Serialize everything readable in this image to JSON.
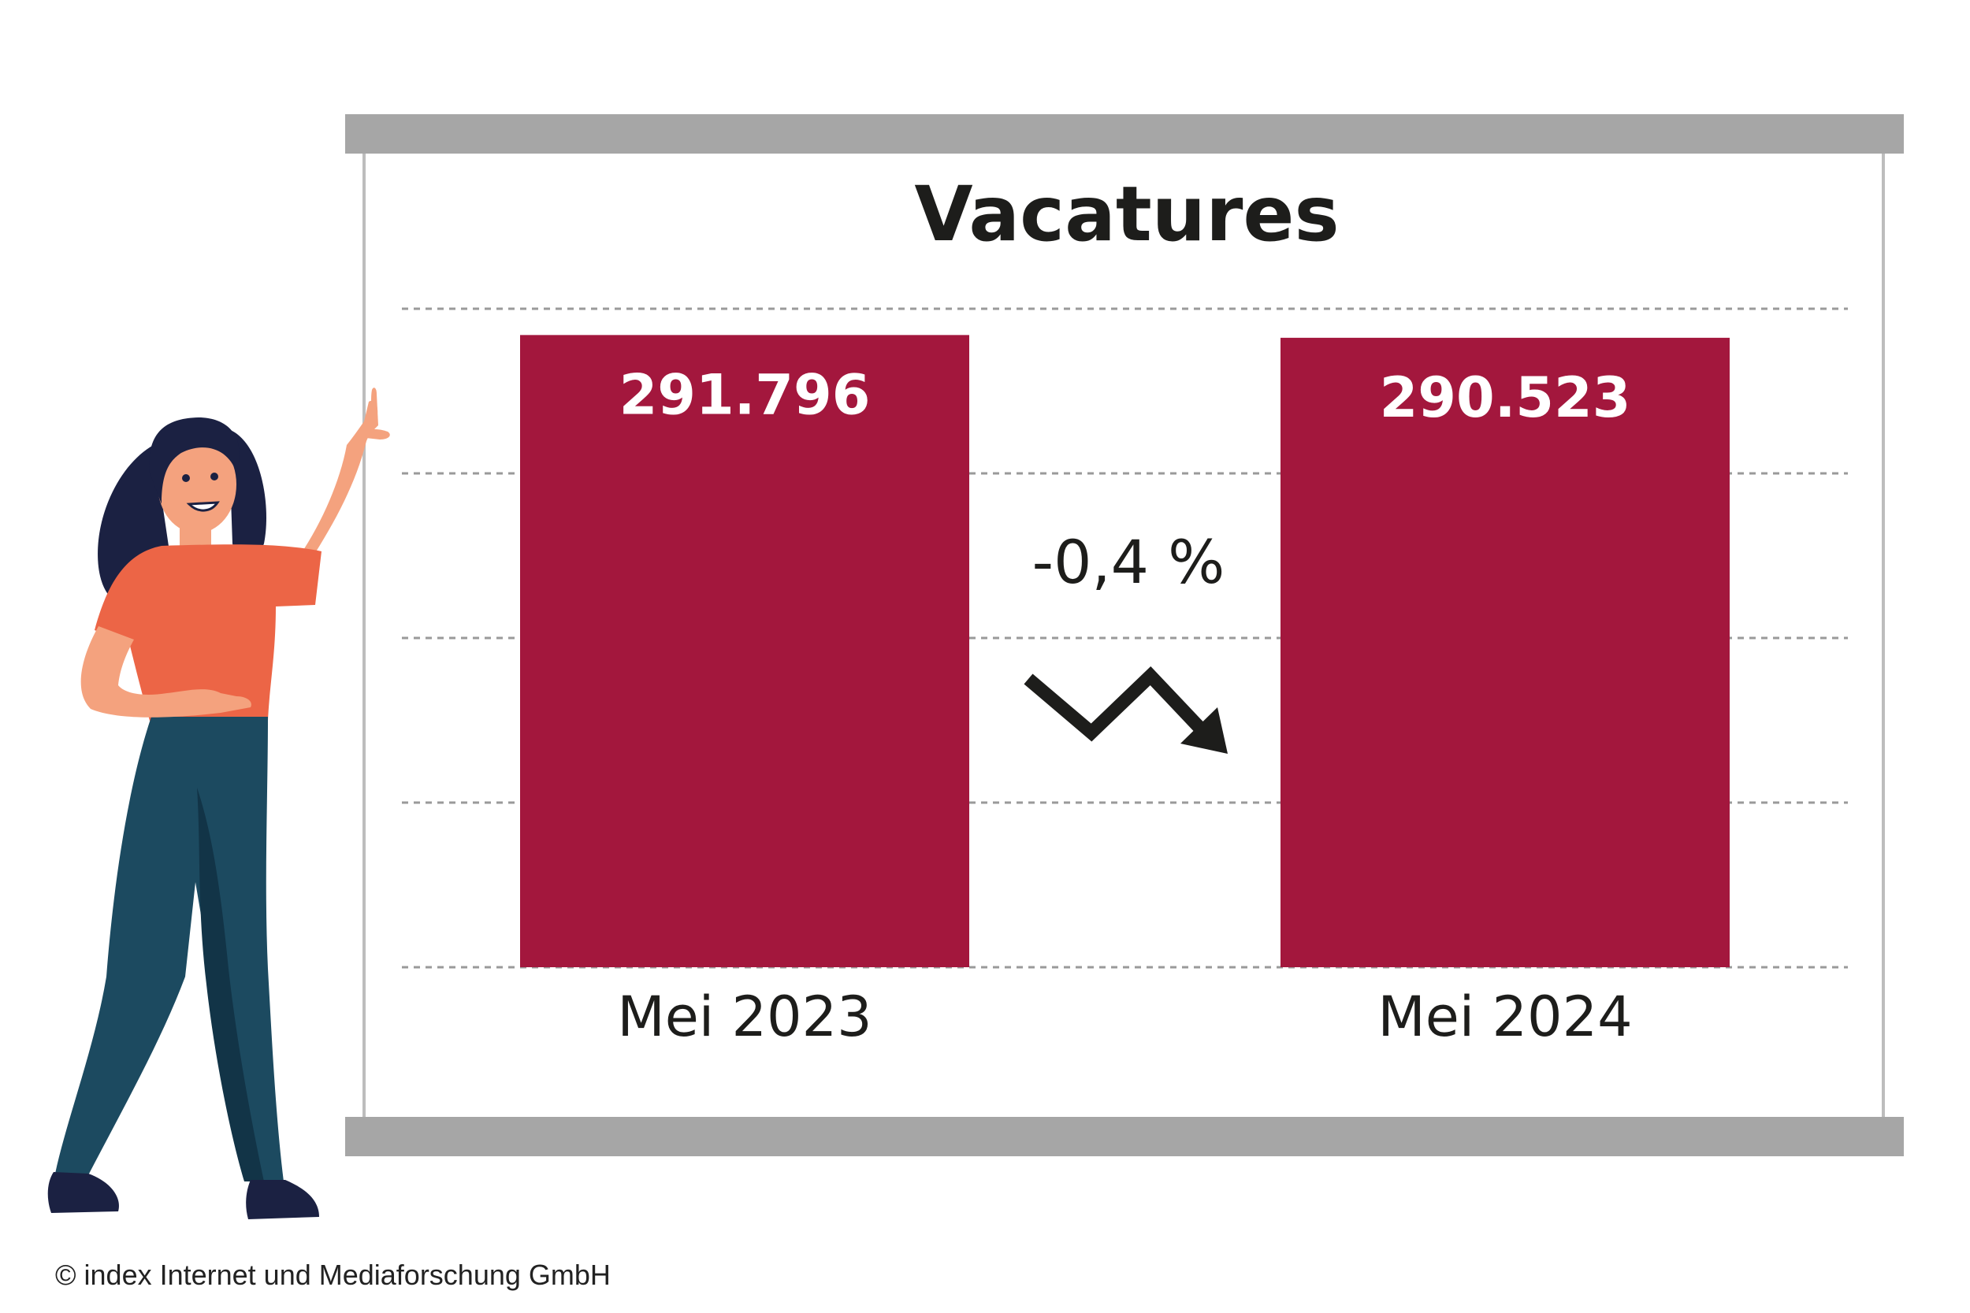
{
  "chart_data": {
    "type": "bar",
    "title": "Vacatures",
    "categories": [
      "Mei 2023",
      "Mei 2024"
    ],
    "values": [
      291796,
      290523
    ],
    "value_labels": [
      "291.796",
      "290.523"
    ],
    "change_label": "-0,4 %",
    "change_direction": "down",
    "ylim": [
      0,
      310000
    ],
    "grid": true,
    "grid_style": "dashed",
    "xlabel": "",
    "ylabel": "",
    "colors": {
      "bar": "#a3173d",
      "bar_text": "#ffffff",
      "frame_rail": "#a6a6a6",
      "frame_line": "#bdbdbd",
      "grid": "#9a9a9a",
      "text": "#1d1d1b"
    }
  },
  "illustration": {
    "figure": "woman-pointing-illustration",
    "colors": {
      "hair": "#1b2142",
      "skin": "#f4a27e",
      "shirt": "#ec6546",
      "pants": "#1c4a60",
      "pants_shadow": "#123447",
      "shoes": "#1b2142"
    }
  },
  "footer": {
    "copyright": "© index Internet und Mediaforschung GmbH"
  }
}
